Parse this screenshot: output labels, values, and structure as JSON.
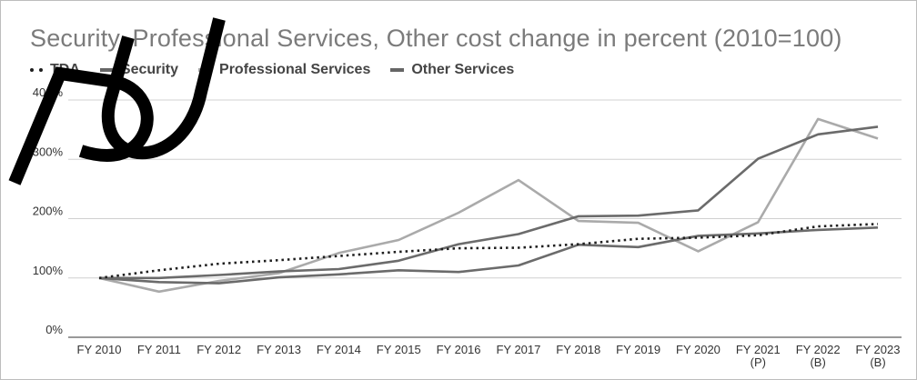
{
  "chart_data": {
    "type": "line",
    "title": "Security, Professional Services, Other cost change in percent (2010=100)",
    "categories": [
      "FY 2010",
      "FY 2011",
      "FY 2012",
      "FY 2013",
      "FY 2014",
      "FY 2015",
      "FY 2016",
      "FY 2017",
      "FY 2018",
      "FY 2019",
      "FY 2020",
      "FY 2021",
      "FY 2022",
      "FY 2023"
    ],
    "category_sublabels": [
      "",
      "",
      "",
      "",
      "",
      "",
      "",
      "",
      "",
      "",
      "",
      "(P)",
      "(B)",
      "(B)"
    ],
    "y_ticks": [
      "0%",
      "100%",
      "200%",
      "300%",
      "400%"
    ],
    "ylim": [
      0,
      400
    ],
    "grid": true,
    "legend_position": "top-left",
    "series": [
      {
        "name": "TDA",
        "style": "dotted",
        "color": "#1f1f1f",
        "values": [
          100,
          113,
          124,
          130,
          137,
          144,
          150,
          151,
          157,
          166,
          168,
          172,
          187,
          191
        ]
      },
      {
        "name": "Security",
        "style": "solid",
        "color": "#6b6b6b",
        "values": [
          100,
          93,
          91,
          101,
          106,
          113,
          110,
          121,
          156,
          152,
          171,
          175,
          181,
          185
        ]
      },
      {
        "name": "Professional Services",
        "style": "solid",
        "color": "#aaaaaa",
        "values": [
          100,
          77,
          95,
          108,
          142,
          164,
          210,
          265,
          196,
          193,
          145,
          194,
          368,
          335
        ]
      },
      {
        "name": "Other Services",
        "style": "solid",
        "color": "#6b6b6b",
        "values": [
          100,
          100,
          105,
          111,
          115,
          129,
          157,
          174,
          204,
          205,
          214,
          301,
          342,
          355
        ]
      }
    ]
  }
}
